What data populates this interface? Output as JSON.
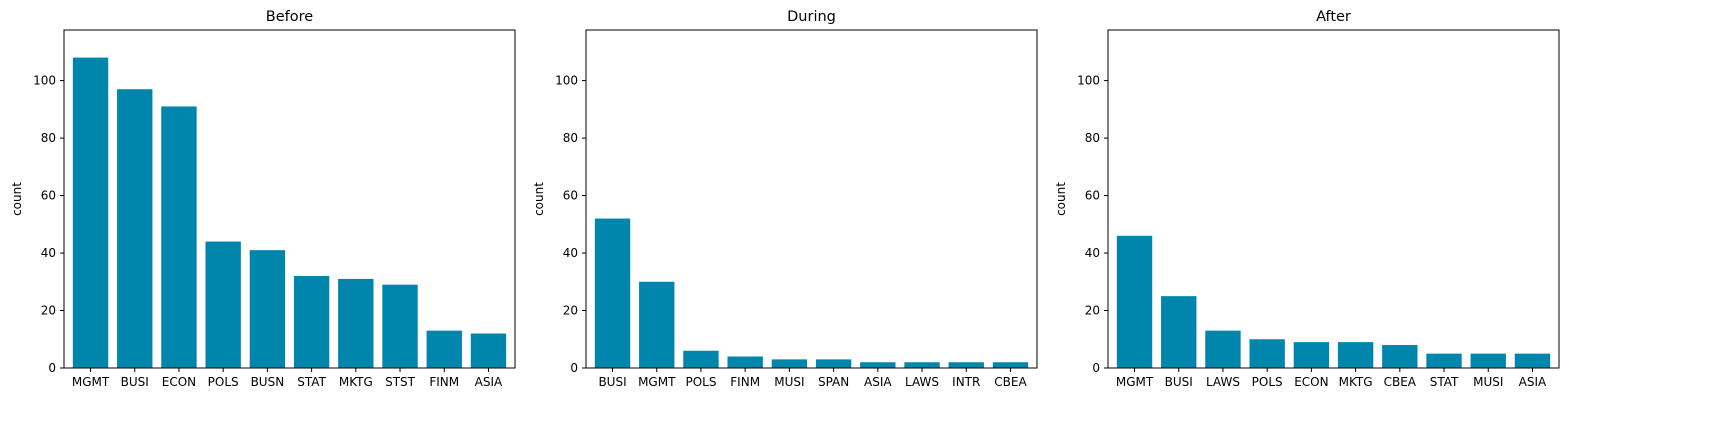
{
  "chart_data": [
    {
      "type": "bar",
      "title": "Before",
      "xlabel": "",
      "ylabel": "count",
      "categories": [
        "MGMT",
        "BUSI",
        "ECON",
        "POLS",
        "BUSN",
        "STAT",
        "MKTG",
        "STST",
        "FINM",
        "ASIA"
      ],
      "values": [
        108,
        97,
        91,
        44,
        41,
        32,
        31,
        29,
        13,
        12
      ],
      "ylim": [
        0,
        117.6
      ],
      "yticks": [
        0,
        20,
        40,
        60,
        80,
        100
      ],
      "grid": false,
      "color": "#0086AD"
    },
    {
      "type": "bar",
      "title": "During",
      "xlabel": "",
      "ylabel": "count",
      "categories": [
        "BUSI",
        "MGMT",
        "POLS",
        "FINM",
        "MUSI",
        "SPAN",
        "ASIA",
        "LAWS",
        "INTR",
        "CBEA"
      ],
      "values": [
        52,
        30,
        6,
        4,
        3,
        3,
        2,
        2,
        2,
        2
      ],
      "ylim": [
        0,
        117.6
      ],
      "yticks": [
        0,
        20,
        40,
        60,
        80,
        100
      ],
      "grid": false,
      "color": "#0086AD"
    },
    {
      "type": "bar",
      "title": "After",
      "xlabel": "",
      "ylabel": "count",
      "categories": [
        "MGMT",
        "BUSI",
        "LAWS",
        "POLS",
        "ECON",
        "MKTG",
        "CBEA",
        "STAT",
        "MUSI",
        "ASIA"
      ],
      "values": [
        46,
        25,
        13,
        10,
        9,
        9,
        8,
        5,
        5,
        5
      ],
      "ylim": [
        0,
        117.6
      ],
      "yticks": [
        0,
        20,
        40,
        60,
        80,
        100
      ],
      "grid": false,
      "color": "#0086AD"
    }
  ]
}
